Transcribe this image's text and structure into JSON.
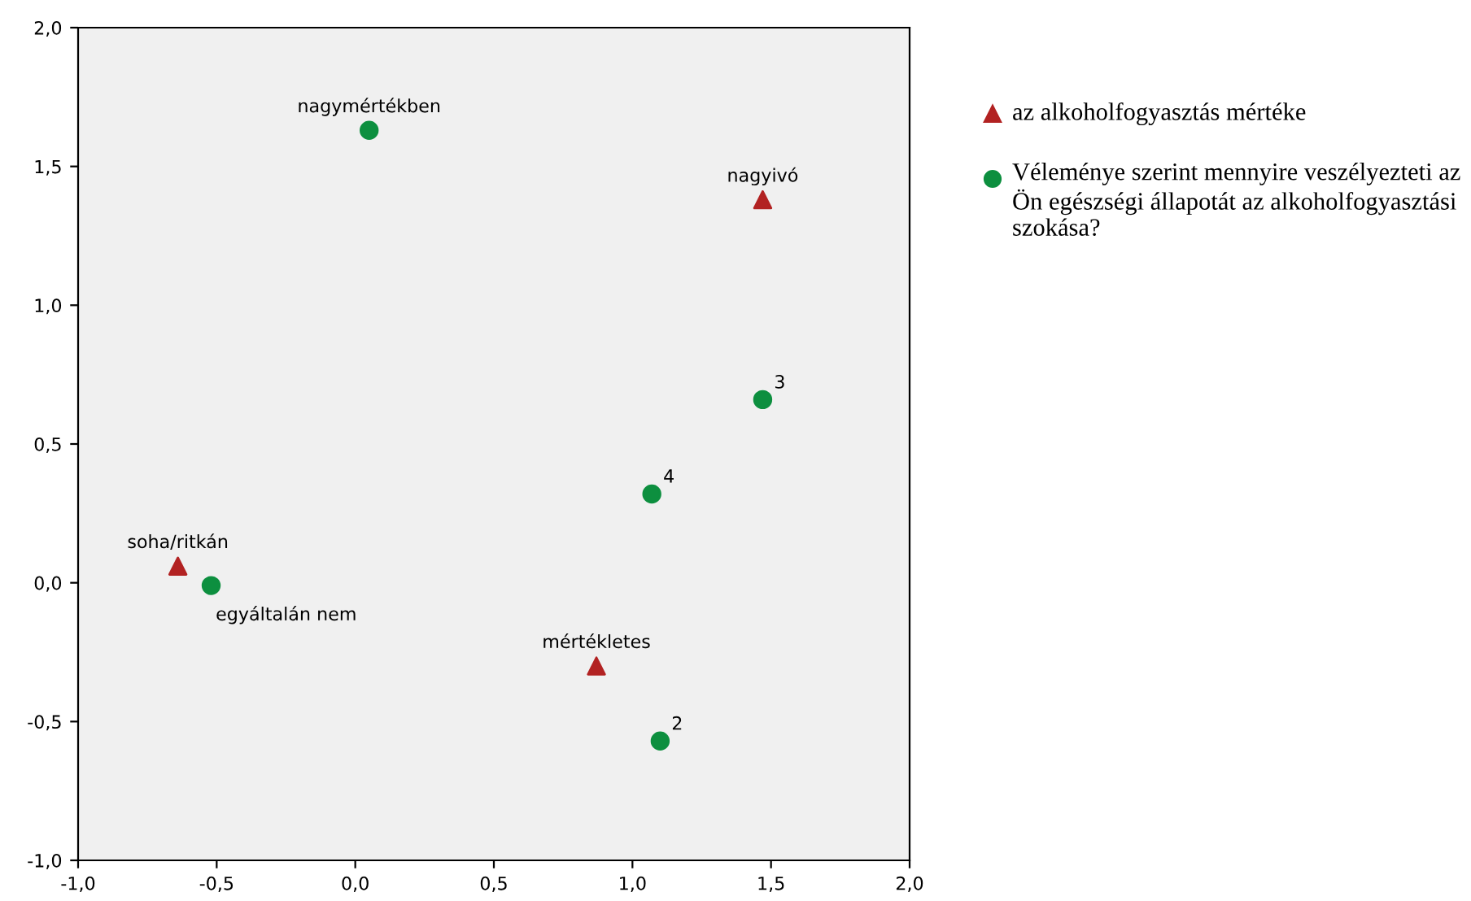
{
  "chart_data": {
    "type": "scatter",
    "xlim": [
      -1.0,
      2.0
    ],
    "ylim": [
      -1.0,
      2.0
    ],
    "xticks": [
      {
        "value": -1.0,
        "label": "-1,0"
      },
      {
        "value": -0.5,
        "label": "-0,5"
      },
      {
        "value": 0.0,
        "label": "0,0"
      },
      {
        "value": 0.5,
        "label": "0,5"
      },
      {
        "value": 1.0,
        "label": "1,0"
      },
      {
        "value": 1.5,
        "label": "1,5"
      },
      {
        "value": 2.0,
        "label": "2,0"
      }
    ],
    "yticks": [
      {
        "value": -1.0,
        "label": "-1,0"
      },
      {
        "value": -0.5,
        "label": "-0,5"
      },
      {
        "value": 0.0,
        "label": "0,0"
      },
      {
        "value": 0.5,
        "label": "0,5"
      },
      {
        "value": 1.0,
        "label": "1,0"
      },
      {
        "value": 1.5,
        "label": "1,5"
      },
      {
        "value": 2.0,
        "label": "2,0"
      }
    ],
    "grid": false,
    "legend": "right",
    "series": [
      {
        "name": "az alkoholfogyasztás mértéke",
        "color": "#b22222",
        "marker": "triangle",
        "x": [
          1.47,
          -0.64,
          0.87
        ],
        "values": [
          1.38,
          0.06,
          -0.3
        ]
      },
      {
        "name": "Véleménye szerint mennyire veszélyezteti az Ön egészségi állapotát az alkoholfogyasztási szokása?",
        "color": "#0d8f3f",
        "marker": "circle",
        "x": [
          0.05,
          1.47,
          1.07,
          -0.52,
          1.1
        ],
        "values": [
          1.63,
          0.66,
          0.32,
          -0.01,
          -0.57
        ]
      }
    ],
    "annotations": [
      {
        "text": "nagyivó",
        "x": 1.47,
        "y": 1.38
      },
      {
        "text": "soha/ritkán",
        "x": -0.64,
        "y": 0.06
      },
      {
        "text": "mértékletes",
        "x": 0.87,
        "y": -0.3
      },
      {
        "text": "nagymértékben",
        "x": 0.05,
        "y": 1.63
      },
      {
        "text": "3",
        "x": 1.47,
        "y": 0.66
      },
      {
        "text": "4",
        "x": 1.07,
        "y": 0.32
      },
      {
        "text": "egyáltalán nem",
        "x": -0.52,
        "y": -0.01
      },
      {
        "text": "2",
        "x": 1.1,
        "y": -0.57
      }
    ]
  }
}
